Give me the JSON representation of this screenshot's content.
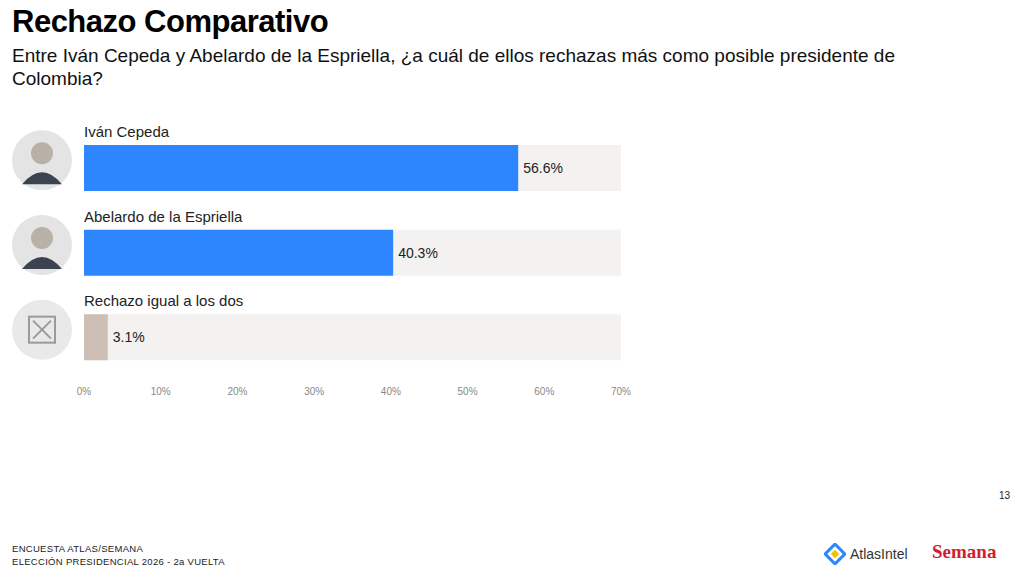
{
  "chart_data": {
    "type": "bar",
    "orientation": "horizontal",
    "title": "Rechazo Comparativo",
    "subtitle": "Entre Iván Cepeda y Abelardo de la Espriella, ¿a cuál de ellos rechazas más como posible presidente de Colombia?",
    "categories": [
      "Iván Cepeda",
      "Abelardo de la Espriella",
      "Rechazo igual a los dos"
    ],
    "values": [
      56.6,
      40.3,
      3.1
    ],
    "value_labels": [
      "56.6%",
      "40.3%",
      "3.1%"
    ],
    "colors": [
      "#2e86ff",
      "#2e86ff",
      "#cdbfb6"
    ],
    "xlim": [
      0,
      70
    ],
    "xticks": [
      {
        "value": 0,
        "label": "0%"
      },
      {
        "value": 10,
        "label": "10%"
      },
      {
        "value": 20,
        "label": "20%"
      },
      {
        "value": 30,
        "label": "30%"
      },
      {
        "value": 40,
        "label": "40%"
      },
      {
        "value": 50,
        "label": "50%"
      },
      {
        "value": 60,
        "label": "60%"
      },
      {
        "value": 70,
        "label": "70%"
      }
    ],
    "grid": false,
    "data_labels": true
  },
  "footer": {
    "source": [
      "ENCUESTA ATLAS/SEMANA",
      "ELECCIÓN PRESIDENCIAL 2026 - 2a VUELTA"
    ],
    "page": "13",
    "logos": [
      "AtlasIntel",
      "Semana"
    ]
  }
}
